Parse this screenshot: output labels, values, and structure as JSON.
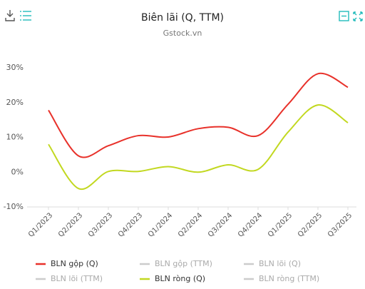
{
  "chart_data": {
    "type": "line",
    "title": "Biên lãi (Q, TTM)",
    "subtitle": "Gstock.vn",
    "categories": [
      "Q1/2023",
      "Q2/2023",
      "Q3/2023",
      "Q4/2023",
      "Q1/2024",
      "Q2/2024",
      "Q3/2024",
      "Q4/2024",
      "Q1/2025",
      "Q2/2025",
      "Q3/2025"
    ],
    "ylim": [
      -10,
      30
    ],
    "yticks": [
      {
        "value": -10,
        "label": "-10%"
      },
      {
        "value": 0,
        "label": "0%"
      },
      {
        "value": 10,
        "label": "10%"
      },
      {
        "value": 20,
        "label": "20%"
      },
      {
        "value": 30,
        "label": "30%"
      }
    ],
    "grid": false,
    "series": [
      {
        "name": "BLN gộp (Q)",
        "color": "#e8312a",
        "visible": true,
        "values": [
          17.8,
          4.7,
          7.6,
          10.5,
          10.1,
          12.5,
          12.9,
          10.5,
          19.5,
          28.3,
          24.4
        ]
      },
      {
        "name": "BLN gộp (TTM)",
        "color": "#cccccc",
        "visible": false,
        "values": [
          null,
          null,
          null,
          null,
          null,
          null,
          null,
          null,
          null,
          null,
          null
        ]
      },
      {
        "name": "BLN lõi (Q)",
        "color": "#cccccc",
        "visible": false,
        "values": [
          null,
          null,
          null,
          null,
          null,
          null,
          null,
          null,
          null,
          null,
          null
        ]
      },
      {
        "name": "BLN lõi (TTM)",
        "color": "#cccccc",
        "visible": false,
        "values": [
          null,
          null,
          null,
          null,
          null,
          null,
          null,
          null,
          null,
          null,
          null
        ]
      },
      {
        "name": "BLN ròng (Q)",
        "color": "#c2d820",
        "visible": true,
        "values": [
          8.0,
          -4.7,
          0.2,
          0.2,
          1.6,
          0.0,
          2.1,
          0.8,
          11.5,
          19.3,
          14.2
        ]
      },
      {
        "name": "BLN ròng (TTM)",
        "color": "#cccccc",
        "visible": false,
        "values": [
          null,
          null,
          null,
          null,
          null,
          null,
          null,
          null,
          null,
          null,
          null
        ]
      }
    ]
  }
}
